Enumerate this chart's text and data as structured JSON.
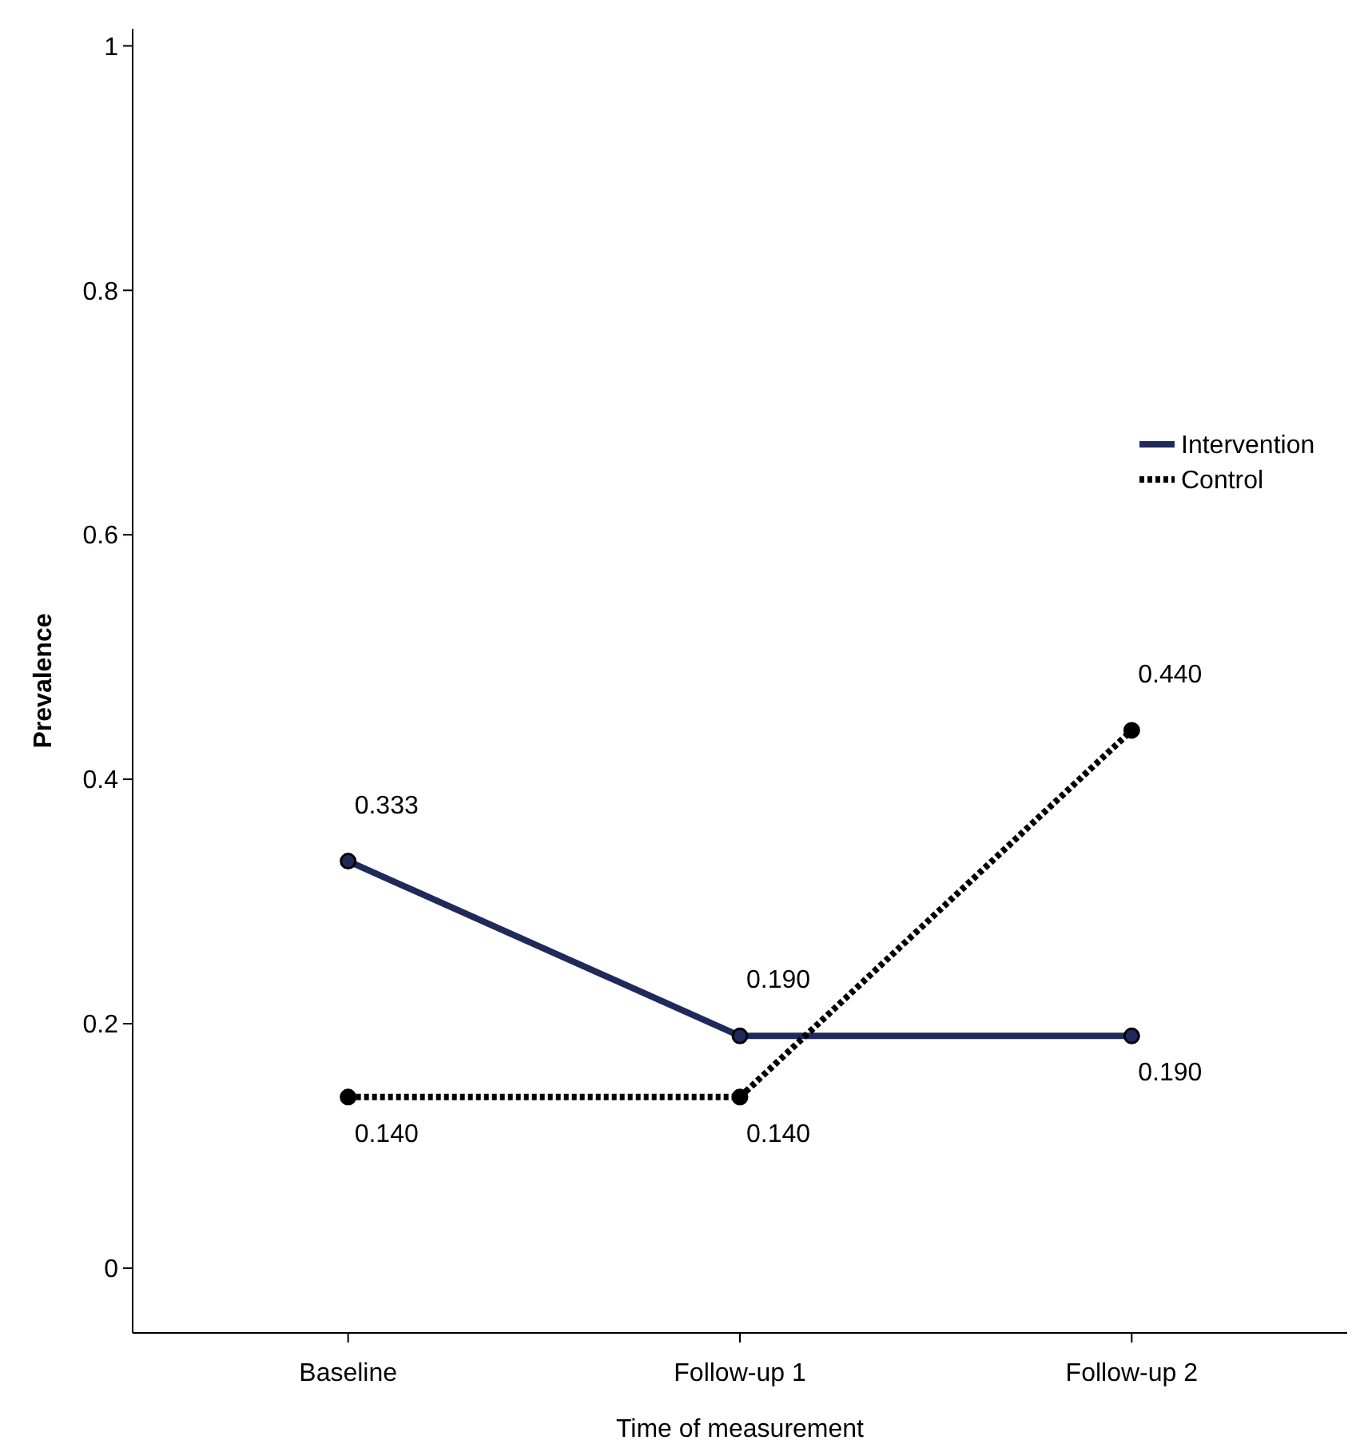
{
  "chart_data": {
    "type": "line",
    "xlabel": "Time of measurement",
    "ylabel": "Prevalence",
    "categories": [
      "Baseline",
      "Follow-up 1",
      "Follow-up 2"
    ],
    "ylim": [
      -0.053,
      1.014
    ],
    "yticks": [
      0,
      0.2,
      0.4,
      0.6,
      0.8,
      1
    ],
    "marker": "circle",
    "legend": "right",
    "grid": false,
    "series": [
      {
        "name": "Intervention",
        "color": "#1f2a5a",
        "line_style": "solid",
        "values": [
          0.333,
          0.19,
          0.19
        ],
        "value_labels": [
          "0.333",
          "0.190",
          "0.190"
        ]
      },
      {
        "name": "Control",
        "color": "#000000",
        "line_style": "dotted",
        "values": [
          0.14,
          0.14,
          0.44
        ],
        "value_labels": [
          "0.140",
          "0.140",
          "0.440"
        ]
      }
    ]
  }
}
